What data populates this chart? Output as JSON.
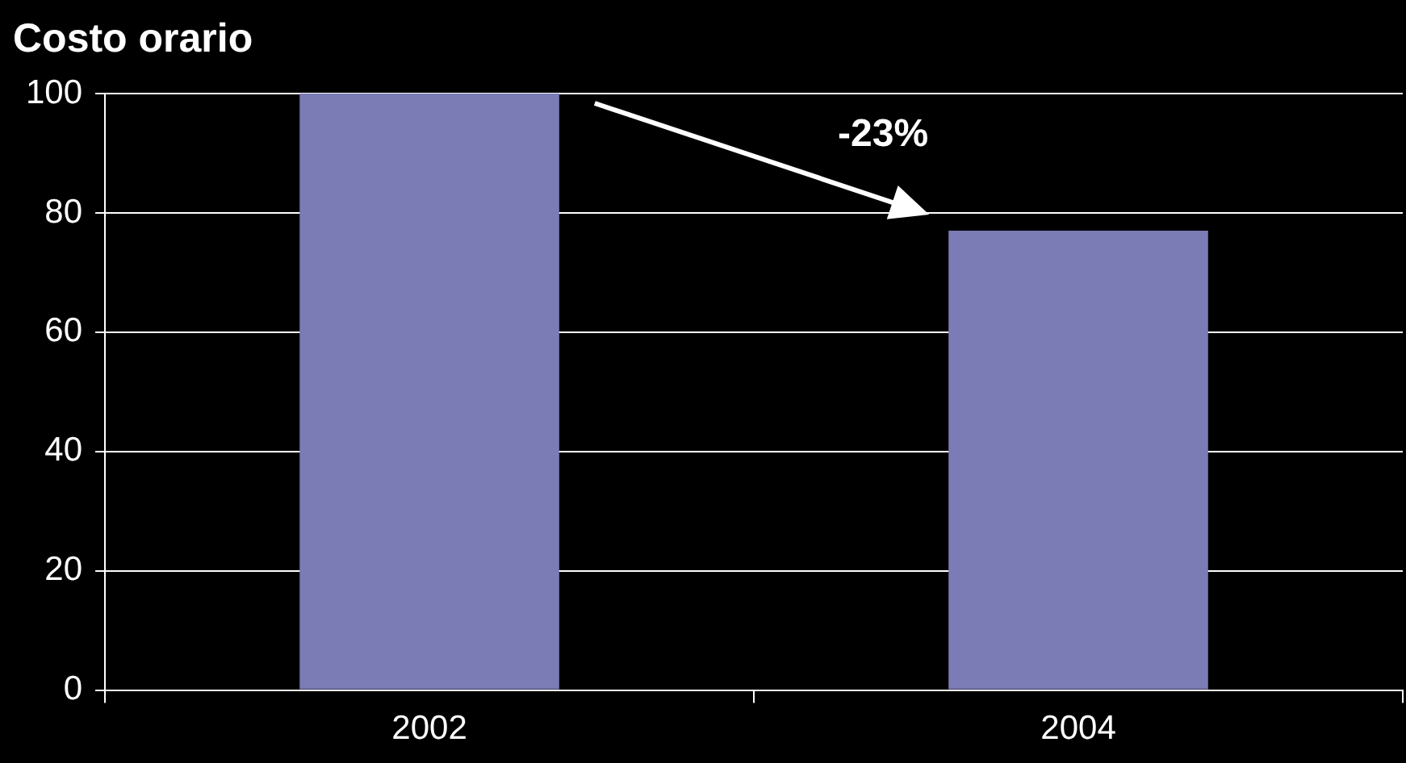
{
  "chart_data": {
    "type": "bar",
    "title": "Costo orario",
    "categories": [
      "2002",
      "2004"
    ],
    "values": [
      100,
      77
    ],
    "color": "#7b7bb5",
    "ylim": [
      0,
      100
    ],
    "yticks": [
      0,
      20,
      40,
      60,
      80,
      100
    ],
    "grid": "y",
    "legend": false,
    "annotations": [
      "-23%"
    ]
  }
}
